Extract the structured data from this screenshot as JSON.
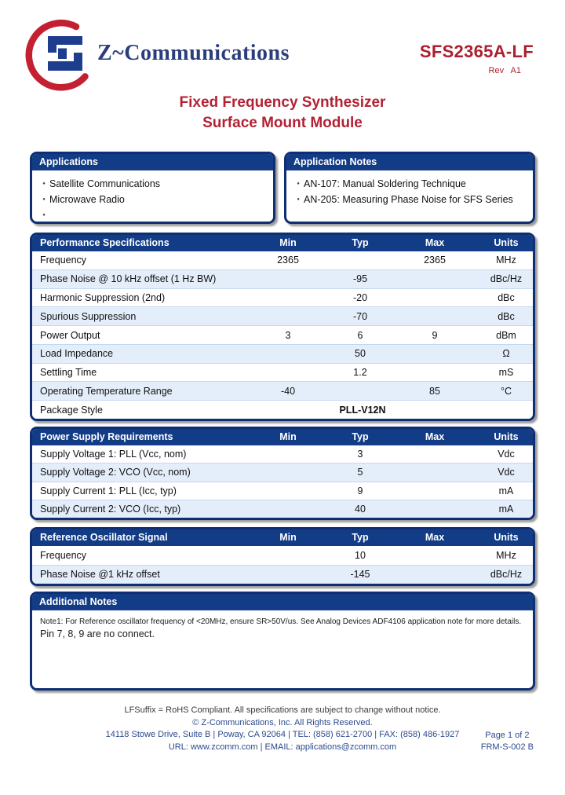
{
  "header": {
    "brand": "Z~Communications",
    "part_number": "SFS2365A-LF",
    "revision": "Rev  A1",
    "title_line1": "Fixed Frequency Synthesizer",
    "title_line2": "Surface Mount Module"
  },
  "applications": {
    "title": "Applications",
    "items": [
      "Satellite Communications",
      "Microwave Radio",
      ""
    ]
  },
  "application_notes": {
    "title": "Application Notes",
    "items": [
      "AN-107: Manual Soldering Technique",
      "AN-205: Measuring Phase Noise for SFS Series"
    ]
  },
  "columns": {
    "min": "Min",
    "typ": "Typ",
    "max": "Max",
    "units": "Units"
  },
  "tables": [
    {
      "title": "Performance Specifications",
      "rows": [
        {
          "label": "Frequency",
          "min": "2365",
          "typ": "",
          "max": "2365",
          "units": "MHz"
        },
        {
          "label": "Phase Noise @ 10 kHz offset (1 Hz BW)",
          "min": "",
          "typ": "-95",
          "max": "",
          "units": "dBc/Hz"
        },
        {
          "label": "Harmonic Suppression (2nd)",
          "min": "",
          "typ": "-20",
          "max": "",
          "units": "dBc"
        },
        {
          "label": "Spurious Suppression",
          "min": "",
          "typ": "-70",
          "max": "",
          "units": "dBc"
        },
        {
          "label": "Power Output",
          "min": "3",
          "typ": "6",
          "max": "9",
          "units": "dBm"
        },
        {
          "label": "Load Impedance",
          "min": "",
          "typ": "50",
          "max": "",
          "units": "Ω"
        },
        {
          "label": "Settling Time",
          "min": "",
          "typ": "1.2",
          "max": "",
          "units": "mS"
        },
        {
          "label": "Operating Temperature Range",
          "min": "-40",
          "typ": "",
          "max": "85",
          "units": "°C"
        },
        {
          "label": "Package Style",
          "span": "PLL-V12N",
          "units": ""
        }
      ]
    },
    {
      "title": "Power Supply Requirements",
      "rows": [
        {
          "label": "Supply Voltage 1: PLL (Vcc, nom)",
          "min": "",
          "typ": "3",
          "max": "",
          "units": "Vdc"
        },
        {
          "label": "Supply Voltage 2: VCO (Vcc, nom)",
          "min": "",
          "typ": "5",
          "max": "",
          "units": "Vdc"
        },
        {
          "label": "Supply Current 1: PLL (Icc, typ)",
          "min": "",
          "typ": "9",
          "max": "",
          "units": "mA"
        },
        {
          "label": "Supply Current 2: VCO (Icc, typ)",
          "min": "",
          "typ": "40",
          "max": "",
          "units": "mA"
        }
      ]
    },
    {
      "title": "Reference Oscillator Signal",
      "rows": [
        {
          "label": "Frequency",
          "min": "",
          "typ": "10",
          "max": "",
          "units": "MHz"
        },
        {
          "label": "Phase Noise @1 kHz offset",
          "min": "",
          "typ": "-145",
          "max": "",
          "units": "dBc/Hz"
        }
      ]
    }
  ],
  "additional_notes": {
    "title": "Additional Notes",
    "note1": "Note1: For Reference oscillator frequency of <20MHz, ensure SR>50V/us. See Analog Devices ADF4106 application note for more details.",
    "note2": "Pin 7, 8, 9 are no connect."
  },
  "footer": {
    "line1": "LFSuffix = RoHS Compliant. All specifications are subject to change without notice.",
    "line2": "© Z-Communications, Inc. All Rights Reserved.",
    "line3": "14118 Stowe Drive, Suite B | Poway, CA 92064 | TEL: (858) 621-2700 | FAX: (858) 486-1927",
    "line4": "URL: www.zcomm.com | EMAIL: applications@zcomm.com",
    "page": "Page 1 of 2",
    "form": "FRM-S-002 B"
  },
  "colors": {
    "navy": "#133c86",
    "border_navy": "#0e2f73",
    "crimson": "#b22234",
    "logo_red": "#c32032",
    "logo_blue": "#1e3d8f",
    "row_alt_blue": "#e4eefa",
    "footer_blue": "#2c4a8c"
  }
}
